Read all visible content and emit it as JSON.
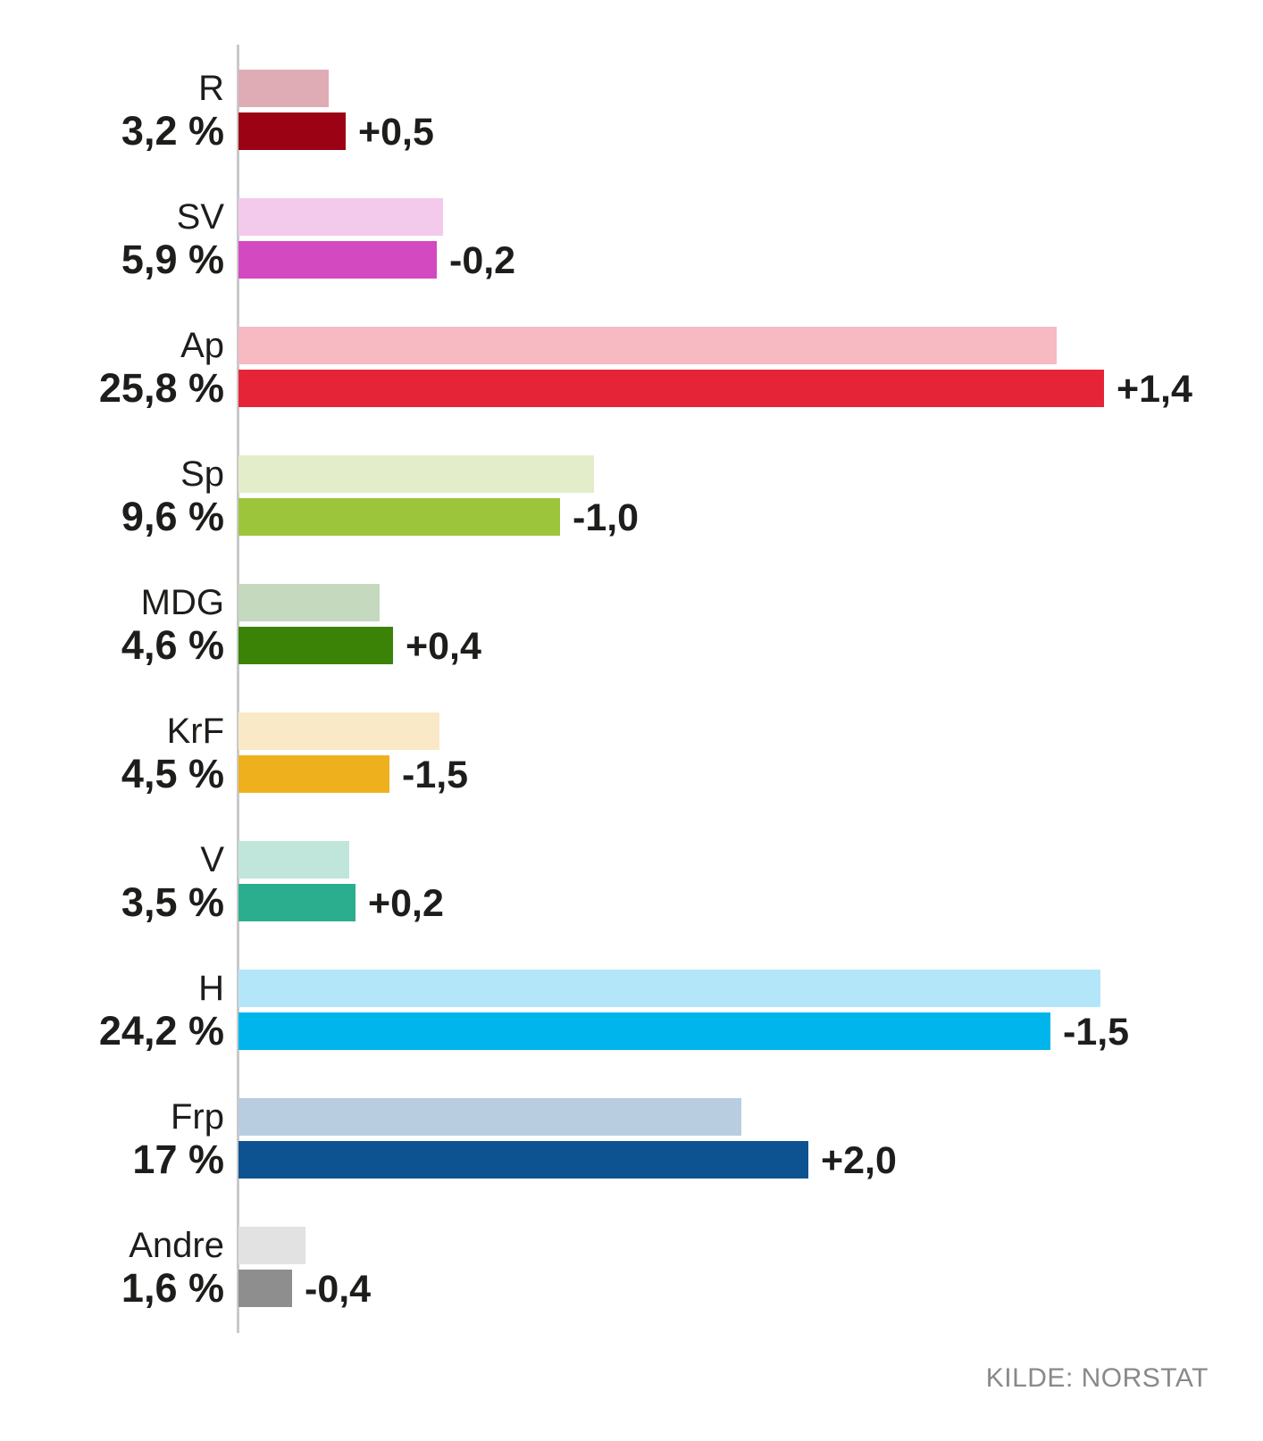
{
  "chart_data": {
    "type": "bar",
    "orientation": "horizontal",
    "title": "",
    "unit": "%",
    "xlim": [
      0,
      30
    ],
    "x_axis_visible": false,
    "baseline_visible": true,
    "grid": false,
    "legend": "none",
    "series_semantics": {
      "previous": "lighter top bar = previous poll result (value - change)",
      "current": "darker bottom bar = current poll result"
    },
    "source_label": "KILDE: NORSTAT",
    "parties": [
      {
        "name": "R",
        "value": 3.2,
        "previous": 2.7,
        "change": 0.5,
        "value_label": "3,2 %",
        "change_label": "+0,5",
        "color_current": "#9b0213",
        "color_previous": "#dfabb5"
      },
      {
        "name": "SV",
        "value": 5.9,
        "previous": 6.1,
        "change": -0.2,
        "value_label": "5,9 %",
        "change_label": "-0,2",
        "color_current": "#d349c0",
        "color_previous": "#f3c9ec"
      },
      {
        "name": "Ap",
        "value": 25.8,
        "previous": 24.4,
        "change": 1.4,
        "value_label": "25,8 %",
        "change_label": "+1,4",
        "color_current": "#e62438",
        "color_previous": "#f7b9c2"
      },
      {
        "name": "Sp",
        "value": 9.6,
        "previous": 10.6,
        "change": -1.0,
        "value_label": "9,6 %",
        "change_label": "-1,0",
        "color_current": "#9cc53c",
        "color_previous": "#e3edca"
      },
      {
        "name": "MDG",
        "value": 4.6,
        "previous": 4.2,
        "change": 0.4,
        "value_label": "4,6 %",
        "change_label": "+0,4",
        "color_current": "#3a8306",
        "color_previous": "#c4d9bd"
      },
      {
        "name": "KrF",
        "value": 4.5,
        "previous": 6.0,
        "change": -1.5,
        "value_label": "4,5 %",
        "change_label": "-1,5",
        "color_current": "#eeb11d",
        "color_previous": "#fae9c6"
      },
      {
        "name": "V",
        "value": 3.5,
        "previous": 3.3,
        "change": 0.2,
        "value_label": "3,5 %",
        "change_label": "+0,2",
        "color_current": "#2bae8d",
        "color_previous": "#c0e5db"
      },
      {
        "name": "H",
        "value": 24.2,
        "previous": 25.7,
        "change": -1.5,
        "value_label": "24,2 %",
        "change_label": "-1,5",
        "color_current": "#00b5ec",
        "color_previous": "#b4e6f9"
      },
      {
        "name": "Frp",
        "value": 17.0,
        "previous": 15.0,
        "change": 2.0,
        "value_label": "17 %",
        "change_label": "+2,0",
        "color_current": "#0d5291",
        "color_previous": "#b8cde0"
      },
      {
        "name": "Andre",
        "value": 1.6,
        "previous": 2.0,
        "change": -0.4,
        "value_label": "1,6 %",
        "change_label": "-0,4",
        "color_current": "#8e8e8e",
        "color_previous": "#e2e2e2"
      }
    ]
  },
  "colors": {
    "text": "#1d1d1b",
    "source_text": "#8b8987",
    "axis_line": "#c9c9c9",
    "background": "#ffffff"
  }
}
